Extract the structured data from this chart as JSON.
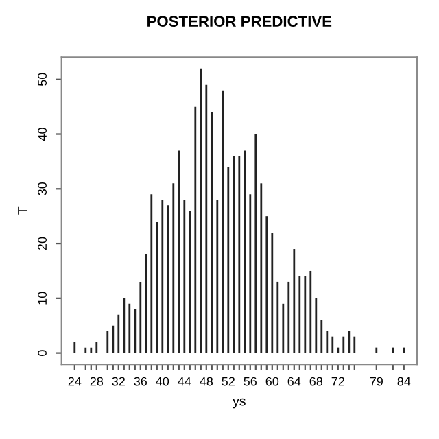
{
  "chart_data": {
    "type": "bar",
    "title": "POSTERIOR PREDICTIVE",
    "xlabel": "ys",
    "ylabel": "T",
    "color": "#222222",
    "x": [
      24,
      26,
      27,
      28,
      30,
      31,
      32,
      33,
      34,
      35,
      36,
      37,
      38,
      39,
      40,
      41,
      42,
      43,
      44,
      45,
      46,
      47,
      48,
      49,
      50,
      51,
      52,
      53,
      54,
      55,
      56,
      57,
      58,
      59,
      60,
      61,
      62,
      63,
      64,
      65,
      66,
      67,
      68,
      69,
      70,
      71,
      72,
      73,
      74,
      75,
      79,
      82,
      84
    ],
    "values": [
      2,
      1,
      1,
      2,
      4,
      5,
      7,
      10,
      9,
      8,
      13,
      18,
      29,
      24,
      28,
      27,
      31,
      37,
      28,
      26,
      45,
      52,
      49,
      44,
      28,
      48,
      34,
      36,
      36,
      37,
      29,
      40,
      31,
      25,
      22,
      13,
      9,
      13,
      19,
      14,
      14,
      15,
      10,
      6,
      4,
      3,
      1,
      3,
      4,
      3,
      1,
      1,
      1
    ],
    "xlim": [
      21.6,
      86.4
    ],
    "ylim": [
      -2.08,
      54.08
    ],
    "xticks": [
      24,
      {
        "value": 26,
        "label": null
      },
      {
        "value": 27,
        "label": null
      },
      28,
      {
        "value": 30,
        "label": null
      },
      {
        "value": 31,
        "label": null
      },
      32,
      {
        "value": 33,
        "label": null
      },
      {
        "value": 34,
        "label": null
      },
      {
        "value": 35,
        "label": null
      },
      36,
      {
        "value": 37,
        "label": null
      },
      {
        "value": 38,
        "label": null
      },
      {
        "value": 39,
        "label": null
      },
      40,
      {
        "value": 41,
        "label": null
      },
      {
        "value": 42,
        "label": null
      },
      {
        "value": 43,
        "label": null
      },
      44,
      {
        "value": 45,
        "label": null
      },
      {
        "value": 46,
        "label": null
      },
      {
        "value": 47,
        "label": null
      },
      48,
      {
        "value": 49,
        "label": null
      },
      {
        "value": 50,
        "label": null
      },
      {
        "value": 51,
        "label": null
      },
      52,
      {
        "value": 53,
        "label": null
      },
      {
        "value": 54,
        "label": null
      },
      {
        "value": 55,
        "label": null
      },
      56,
      {
        "value": 57,
        "label": null
      },
      {
        "value": 58,
        "label": null
      },
      {
        "value": 59,
        "label": null
      },
      60,
      {
        "value": 61,
        "label": null
      },
      {
        "value": 62,
        "label": null
      },
      {
        "value": 63,
        "label": null
      },
      64,
      {
        "value": 65,
        "label": null
      },
      {
        "value": 66,
        "label": null
      },
      {
        "value": 67,
        "label": null
      },
      68,
      {
        "value": 69,
        "label": null
      },
      {
        "value": 70,
        "label": null
      },
      {
        "value": 71,
        "label": null
      },
      72,
      {
        "value": 73,
        "label": null
      },
      {
        "value": 74,
        "label": null
      },
      {
        "value": 75,
        "label": null
      },
      79,
      {
        "value": 82,
        "label": null
      },
      84
    ],
    "yticks": [
      0,
      10,
      20,
      30,
      40,
      50
    ],
    "grid": false
  }
}
